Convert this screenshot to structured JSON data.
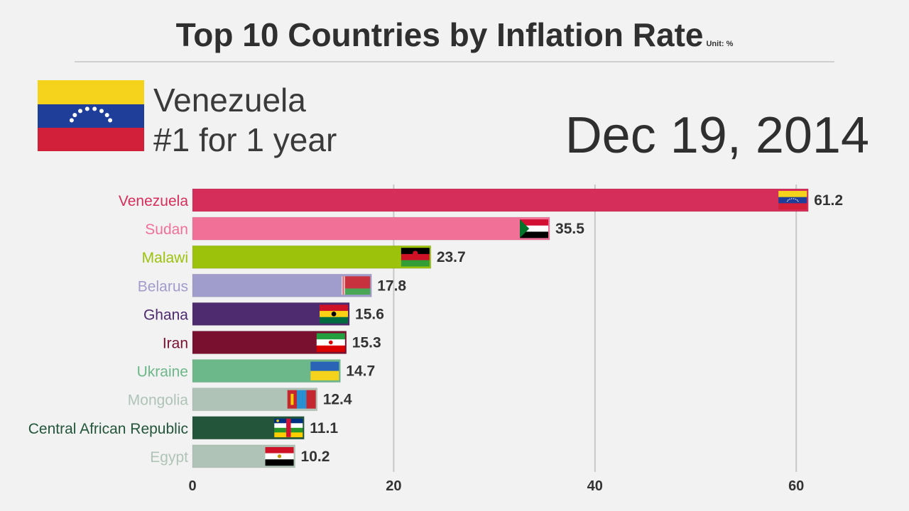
{
  "title": "Top 10 Countries by Inflation Rate",
  "unit": "Unit: %",
  "leader": {
    "name": "Venezuela",
    "streak": "#1 for 1 year",
    "flag": "venezuela-flag"
  },
  "date": "Dec 19, 2014",
  "chart_data": {
    "type": "bar",
    "orientation": "horizontal",
    "title": "Top 10 Countries by Inflation Rate",
    "unit": "Unit: %",
    "categories": [
      "Venezuela",
      "Sudan",
      "Malawi",
      "Belarus",
      "Ghana",
      "Iran",
      "Ukraine",
      "Mongolia",
      "Central African Republic",
      "Egypt"
    ],
    "values": [
      61.2,
      35.5,
      23.7,
      17.8,
      15.6,
      15.3,
      14.7,
      12.4,
      11.1,
      10.2
    ],
    "value_labels": [
      "61.2",
      "35.5",
      "23.7",
      "17.8",
      "15.6",
      "15.3",
      "14.7",
      "12.4",
      "11.1",
      "10.2"
    ],
    "colors": [
      "#d62e5a",
      "#f07098",
      "#9cc20c",
      "#a09ccc",
      "#4e2a6e",
      "#7a1030",
      "#6db88a",
      "#afc4b6",
      "#22553a",
      "#afc4b6"
    ],
    "flags": [
      "venezuela-flag",
      "sudan-flag",
      "malawi-flag",
      "belarus-flag",
      "ghana-flag",
      "iran-flag",
      "ukraine-flag",
      "mongolia-flag",
      "central-african-republic-flag",
      "egypt-flag"
    ],
    "xlim": [
      0,
      68
    ],
    "xticks": [
      0,
      20,
      40,
      60
    ],
    "grid": true
  }
}
